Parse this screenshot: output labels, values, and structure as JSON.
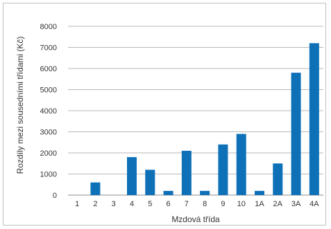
{
  "chart_data": {
    "type": "bar",
    "categories": [
      "1",
      "2",
      "3",
      "4",
      "5",
      "6",
      "7",
      "8",
      "9",
      "10",
      "1A",
      "2A",
      "3A",
      "4A"
    ],
    "values": [
      0,
      600,
      0,
      1800,
      1200,
      200,
      2100,
      200,
      2400,
      2900,
      200,
      1500,
      5800,
      7200
    ],
    "title": "",
    "xlabel": "Mzdová třída",
    "ylabel": "Rozdíly mezi sousedními třídami (Kč)",
    "ylim": [
      0,
      8000
    ],
    "yticks": [
      0,
      1000,
      2000,
      3000,
      4000,
      5000,
      6000,
      7000,
      8000
    ],
    "grid": true,
    "bar_color": "#0e71b8",
    "grid_color": "#b7b7b7"
  }
}
